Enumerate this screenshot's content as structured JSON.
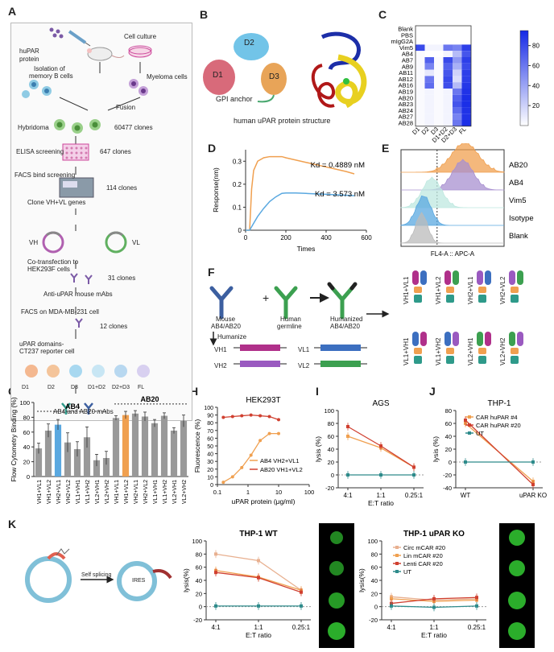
{
  "labels": {
    "A": "A",
    "B": "B",
    "C": "C",
    "D": "D",
    "E": "E",
    "F": "F",
    "G": "G",
    "H": "H",
    "I": "I",
    "J": "J",
    "K": "K"
  },
  "panelA": {
    "huPAR": "huPAR",
    "protein": "protein",
    "cell_culture": "Cell culture",
    "isolation1": "Isolation of",
    "isolation2": "memory B cells",
    "myeloma": "Myeloma cells",
    "fusion": "Fusion",
    "hybridoma": "Hybridoma",
    "hyb_count": "60477 clones",
    "elisa": "ELISA screening",
    "elisa_count": "647 clones",
    "facs_bind": "FACS bind screening",
    "facs_count": "114 clones",
    "clone_genes": "Clone VH+VL genes",
    "vh": "VH",
    "vl": "VL",
    "cotrans1": "Co-transfection to",
    "cotrans2": "HEK293F cells",
    "cotrans_count": "31 clones",
    "anti_upar": "Anti-uPAR mouse mAbs",
    "facs_mda": "FACS on  MDA-MB-231 cell",
    "mda_count": "12  clones",
    "domains1": "uPAR domains-",
    "domains2": "CT237 reporter cell",
    "domain_labels": [
      "D1",
      "D2",
      "D3",
      "D1+D2",
      "D2+D3",
      "FL"
    ],
    "final": "AB4 and AB20  mAbs"
  },
  "panelB": {
    "d1": "D1",
    "d2": "D2",
    "d3": "D3",
    "gpi": "GPI anchor",
    "caption": "human uPAR protein structure"
  },
  "colors": {
    "orange": "#f0a050",
    "blue": "#5aa8e0",
    "red": "#d04030",
    "teal": "#2e8b8b",
    "grey": "#999999",
    "pinkD": "#d86a7a",
    "blueD": "#72c4e8",
    "orangeD": "#e8a458"
  },
  "chart_data": [
    {
      "panel": "C",
      "type": "heatmap",
      "rows": [
        "Blank",
        "PBS",
        "mIgG2A",
        "Vim5",
        "AB4",
        "AB7",
        "AB9",
        "AB11",
        "AB12",
        "AB16",
        "AB19",
        "AB20",
        "AB23",
        "AB24",
        "AB27",
        "AB28"
      ],
      "columns": [
        "D1",
        "D2",
        "D3",
        "D1+D2",
        "D2+D3",
        "FL"
      ],
      "values": [
        [
          0,
          0,
          0,
          0,
          0,
          0
        ],
        [
          0,
          0,
          0,
          0,
          0,
          0
        ],
        [
          0,
          0,
          0,
          0,
          0,
          0
        ],
        [
          80,
          5,
          5,
          60,
          55,
          85
        ],
        [
          2,
          0,
          0,
          5,
          30,
          75
        ],
        [
          2,
          70,
          2,
          80,
          45,
          85
        ],
        [
          2,
          55,
          2,
          70,
          35,
          80
        ],
        [
          2,
          10,
          2,
          75,
          20,
          85
        ],
        [
          2,
          60,
          2,
          80,
          15,
          85
        ],
        [
          2,
          65,
          2,
          78,
          30,
          88
        ],
        [
          2,
          5,
          2,
          5,
          60,
          90
        ],
        [
          2,
          5,
          2,
          5,
          70,
          92
        ],
        [
          2,
          5,
          2,
          5,
          75,
          92
        ],
        [
          2,
          5,
          2,
          5,
          65,
          90
        ],
        [
          2,
          5,
          2,
          5,
          55,
          90
        ],
        [
          2,
          5,
          2,
          5,
          60,
          92
        ]
      ],
      "colorbar_ticks": [
        20,
        40,
        60,
        80
      ],
      "range": [
        0,
        95
      ]
    },
    {
      "panel": "D",
      "type": "line",
      "xlabel": "Times",
      "ylabel": "Response(nm)",
      "xlim": [
        0,
        600
      ],
      "ylim": [
        0,
        0.35
      ],
      "xticks": [
        0,
        200,
        400,
        600
      ],
      "yticks": [
        0,
        0.1,
        0.2,
        0.3
      ],
      "series": [
        {
          "name": "AB20",
          "kd": "Kd = 0.4889 nM",
          "color": "#f0a050",
          "x": [
            0,
            20,
            30,
            40,
            60,
            90,
            120,
            150,
            180,
            200,
            250,
            300,
            350,
            400,
            450,
            500,
            540
          ],
          "y": [
            0.0,
            0.0,
            0.18,
            0.26,
            0.3,
            0.315,
            0.32,
            0.32,
            0.32,
            0.315,
            0.305,
            0.295,
            0.285,
            0.275,
            0.265,
            0.255,
            0.245
          ]
        },
        {
          "name": "AB4",
          "kd": "Kd = 3.573 nM",
          "color": "#5aa8e0",
          "x": [
            0,
            20,
            40,
            60,
            90,
            120,
            150,
            180,
            200,
            250,
            300,
            350,
            400,
            450,
            500,
            540
          ],
          "y": [
            0.0,
            0.0,
            0.03,
            0.06,
            0.095,
            0.125,
            0.145,
            0.16,
            0.162,
            0.162,
            0.16,
            0.158,
            0.156,
            0.154,
            0.152,
            0.15
          ]
        }
      ]
    },
    {
      "panel": "E",
      "type": "histogram",
      "xlabel": "FL4-A :: APC-A",
      "series": [
        "AB20",
        "AB4",
        "Vim5",
        "Isotype",
        "Blank"
      ]
    },
    {
      "panel": "G",
      "type": "bar",
      "ylabel": "Flow Cytometry Binding (%)",
      "ylim": [
        0,
        100
      ],
      "yticks": [
        0,
        20,
        40,
        60,
        80,
        100
      ],
      "groups": [
        "AB4",
        "AB20"
      ],
      "categories": [
        "VH1+VL1",
        "VH1+VL2",
        "VH2+VL1",
        "VH2+VL2",
        "VL1+VH1",
        "VL1+VH2",
        "VL2+VH1",
        "VL2+VH2",
        "VH1+VL1",
        "VH1+VL2",
        "VH2+VL1",
        "VH2+VL2",
        "VL1+VH1",
        "VL1+VH2",
        "VL2+VH1",
        "VL2+VH2"
      ],
      "values": [
        38,
        62,
        70,
        46,
        37,
        53,
        22,
        25,
        79,
        83,
        85,
        81,
        72,
        82,
        62,
        75
      ],
      "errors": [
        7,
        9,
        7,
        13,
        10,
        14,
        8,
        9,
        3,
        5,
        4,
        6,
        5,
        4,
        4,
        8
      ],
      "highlight": {
        "2": "#5aa8e0",
        "9": "#f0a050"
      }
    },
    {
      "panel": "H",
      "type": "line",
      "title": "HEK293T",
      "xlabel": "uPAR protein (μg/ml)",
      "ylabel": "Fluorescence (%)",
      "xlog": true,
      "xlim": [
        0.1,
        100
      ],
      "ylim": [
        0,
        100
      ],
      "yticks": [
        0,
        10,
        20,
        30,
        40,
        50,
        60,
        70,
        80,
        90,
        100
      ],
      "xtick_labels": [
        "0.1",
        "1",
        "10",
        "100"
      ],
      "series": [
        {
          "name": "AB4 VH2+VL1",
          "color": "#f0a050",
          "x": [
            0.156,
            0.3125,
            0.625,
            1.25,
            2.5,
            5,
            10
          ],
          "y": [
            3,
            10,
            22,
            38,
            57,
            66,
            66
          ]
        },
        {
          "name": "AB20 VH1+VL2",
          "color": "#d04030",
          "x": [
            0.156,
            0.3125,
            0.625,
            1.25,
            2.5,
            5,
            10
          ],
          "y": [
            87,
            88,
            89,
            90,
            89,
            88,
            84
          ]
        }
      ]
    },
    {
      "panel": "I",
      "type": "line",
      "title": "AGS",
      "xlabel": "E:T ratio",
      "ylabel": "lysis (%)",
      "categories": [
        "4:1",
        "1:1",
        "0.25:1"
      ],
      "ylim": [
        -20,
        100
      ],
      "yticks": [
        -20,
        0,
        20,
        40,
        60,
        80,
        100
      ],
      "series": [
        {
          "name": "CAR huPAR #4",
          "color": "#f0a050",
          "values": [
            60,
            42,
            12
          ]
        },
        {
          "name": "CAR huPAR #20",
          "color": "#d04030",
          "values": [
            75,
            45,
            12
          ]
        },
        {
          "name": "UT",
          "color": "#2e8b8b",
          "values": [
            0,
            0,
            0
          ]
        }
      ]
    },
    {
      "panel": "J",
      "type": "line",
      "title": "THP-1",
      "xlabel": "",
      "ylabel": "lysis (%)",
      "categories": [
        "WT",
        "uPAR KO"
      ],
      "ylim": [
        -40,
        80
      ],
      "yticks": [
        -40,
        -20,
        0,
        20,
        40,
        60,
        80
      ],
      "series": [
        {
          "name": "CAR huPAR #4",
          "color": "#f0a050",
          "values": [
            60,
            -30
          ]
        },
        {
          "name": "CAR huPAR #20",
          "color": "#d04030",
          "values": [
            65,
            -35
          ]
        },
        {
          "name": "UT",
          "color": "#2e8b8b",
          "values": [
            0,
            0
          ]
        }
      ]
    },
    {
      "panel": "K1",
      "type": "line",
      "title": "THP-1 WT",
      "xlabel": "E:T ratio",
      "ylabel": "lysis(%)",
      "categories": [
        "4:1",
        "1:1",
        "0.25:1"
      ],
      "ylim": [
        -20,
        100
      ],
      "yticks": [
        -20,
        0,
        20,
        40,
        60,
        80,
        100
      ],
      "series": [
        {
          "name": "Circ mCAR #20",
          "color": "#e8b090",
          "values": [
            80,
            70,
            25
          ]
        },
        {
          "name": "Lin mCAR #20",
          "color": "#f0a050",
          "values": [
            55,
            45,
            25
          ]
        },
        {
          "name": "Lenti CAR #20",
          "color": "#d04030",
          "values": [
            52,
            44,
            22
          ]
        },
        {
          "name": "UT",
          "color": "#2e8b8b",
          "values": [
            1,
            1,
            1
          ]
        }
      ]
    },
    {
      "panel": "K2",
      "type": "line",
      "title": "THP-1 uPAR KO",
      "xlabel": "E:T ratio",
      "ylabel": "lysis(%)",
      "categories": [
        "4:1",
        "1:1",
        "0.25:1"
      ],
      "ylim": [
        -20,
        100
      ],
      "yticks": [
        -20,
        0,
        20,
        40,
        60,
        80,
        100
      ],
      "series": [
        {
          "name": "Circ mCAR #20",
          "color": "#e8b090",
          "values": [
            15,
            10,
            12
          ]
        },
        {
          "name": "Lin mCAR #20",
          "color": "#f0a050",
          "values": [
            12,
            8,
            10
          ]
        },
        {
          "name": "Lenti CAR #20",
          "color": "#d04030",
          "values": [
            5,
            12,
            14
          ]
        },
        {
          "name": "UT",
          "color": "#2e8b8b",
          "values": [
            1,
            -1,
            1
          ]
        }
      ]
    }
  ],
  "panelF": {
    "mouse": "Mouse",
    "mouse2": "AB4/AB20",
    "human": "Human",
    "human2": "germline",
    "humanized": "Humanized",
    "humanized2": "AB4/AB20",
    "humanize": "Humanize",
    "vh1": "VH1",
    "vh2": "VH2",
    "vl1": "VL1",
    "vl2": "VL2",
    "combos_top": [
      "VH1+VL1",
      "VH1+VL2",
      "VH2+VL1",
      "VH2+VL2"
    ],
    "combos_bottom": [
      "VL1+VH1",
      "VL1+VH2",
      "VL2+VH1",
      "VL2+VH2"
    ],
    "plus": "+"
  },
  "panelK": {
    "self_splicing": "Self splicing",
    "ires": "IRES"
  }
}
